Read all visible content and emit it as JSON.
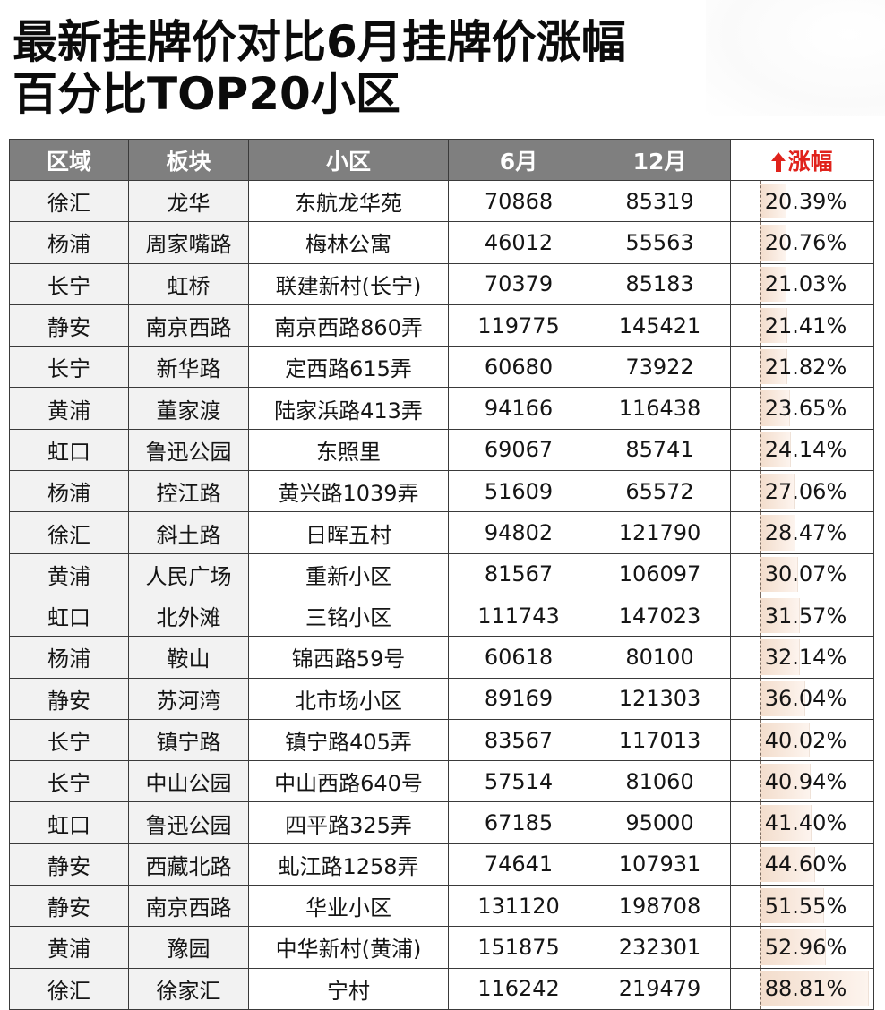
{
  "title": {
    "line1": "最新挂牌价对比6月挂牌价涨幅",
    "line2": "百分比TOP20小区"
  },
  "table": {
    "headers": [
      "区域",
      "板块",
      "小区",
      "6月",
      "12月",
      "涨幅"
    ],
    "rise_icon": "arrow-up-icon",
    "rise_arrow_glyph": "🠉",
    "rise_color": "#e0221b",
    "header_bg": "#7f7f7f",
    "rows": [
      [
        "徐汇",
        "龙华",
        "东航龙华苑",
        "70868",
        "85319",
        "20.39%"
      ],
      [
        "杨浦",
        "周家嘴路",
        "梅林公寓",
        "46012",
        "55563",
        "20.76%"
      ],
      [
        "长宁",
        "虹桥",
        "联建新村(长宁)",
        "70379",
        "85183",
        "21.03%"
      ],
      [
        "静安",
        "南京西路",
        "南京西路860弄",
        "119775",
        "145421",
        "21.41%"
      ],
      [
        "长宁",
        "新华路",
        "定西路615弄",
        "60680",
        "73922",
        "21.82%"
      ],
      [
        "黄浦",
        "董家渡",
        "陆家浜路413弄",
        "94166",
        "116438",
        "23.65%"
      ],
      [
        "虹口",
        "鲁迅公园",
        "东照里",
        "69067",
        "85741",
        "24.14%"
      ],
      [
        "杨浦",
        "控江路",
        "黄兴路1039弄",
        "51609",
        "65572",
        "27.06%"
      ],
      [
        "徐汇",
        "斜土路",
        "日晖五村",
        "94802",
        "121790",
        "28.47%"
      ],
      [
        "黄浦",
        "人民广场",
        "重新小区",
        "81567",
        "106097",
        "30.07%"
      ],
      [
        "虹口",
        "北外滩",
        "三铭小区",
        "111743",
        "147023",
        "31.57%"
      ],
      [
        "杨浦",
        "鞍山",
        "锦西路59号",
        "60618",
        "80100",
        "32.14%"
      ],
      [
        "静安",
        "苏河湾",
        "北市场小区",
        "89169",
        "121303",
        "36.04%"
      ],
      [
        "长宁",
        "镇宁路",
        "镇宁路405弄",
        "83567",
        "117013",
        "40.02%"
      ],
      [
        "长宁",
        "中山公园",
        "中山西路640号",
        "57514",
        "81060",
        "40.94%"
      ],
      [
        "虹口",
        "鲁迅公园",
        "四平路325弄",
        "67185",
        "95000",
        "41.40%"
      ],
      [
        "静安",
        "西藏北路",
        "虬江路1258弄",
        "74641",
        "107931",
        "44.60%"
      ],
      [
        "静安",
        "南京西路",
        "华业小区",
        "131120",
        "198708",
        "51.55%"
      ],
      [
        "黄浦",
        "豫园",
        "中华新村(黄浦)",
        "151875",
        "232301",
        "52.96%"
      ],
      [
        "徐汇",
        "徐家汇",
        "宁村",
        "116242",
        "219479",
        "88.81%"
      ]
    ]
  },
  "chart_data": {
    "type": "table",
    "title": "最新挂牌价对比6月挂牌价涨幅百分比TOP20小区",
    "columns": [
      "区域",
      "板块",
      "小区",
      "6月",
      "12月",
      "涨幅"
    ],
    "rows": [
      {
        "区域": "徐汇",
        "板块": "龙华",
        "小区": "东航龙华苑",
        "6月": 70868,
        "12月": 85319,
        "涨幅": 20.39
      },
      {
        "区域": "杨浦",
        "板块": "周家嘴路",
        "小区": "梅林公寓",
        "6月": 46012,
        "12月": 55563,
        "涨幅": 20.76
      },
      {
        "区域": "长宁",
        "板块": "虹桥",
        "小区": "联建新村(长宁)",
        "6月": 70379,
        "12月": 85183,
        "涨幅": 21.03
      },
      {
        "区域": "静安",
        "板块": "南京西路",
        "小区": "南京西路860弄",
        "6月": 119775,
        "12月": 145421,
        "涨幅": 21.41
      },
      {
        "区域": "长宁",
        "板块": "新华路",
        "小区": "定西路615弄",
        "6月": 60680,
        "12月": 73922,
        "涨幅": 21.82
      },
      {
        "区域": "黄浦",
        "板块": "董家渡",
        "小区": "陆家浜路413弄",
        "6月": 94166,
        "12月": 116438,
        "涨幅": 23.65
      },
      {
        "区域": "虹口",
        "板块": "鲁迅公园",
        "小区": "东照里",
        "6月": 69067,
        "12月": 85741,
        "涨幅": 24.14
      },
      {
        "区域": "杨浦",
        "板块": "控江路",
        "小区": "黄兴路1039弄",
        "6月": 51609,
        "12月": 65572,
        "涨幅": 27.06
      },
      {
        "区域": "徐汇",
        "板块": "斜土路",
        "小区": "日晖五村",
        "6月": 94802,
        "12月": 121790,
        "涨幅": 28.47
      },
      {
        "区域": "黄浦",
        "板块": "人民广场",
        "小区": "重新小区",
        "6月": 81567,
        "12月": 106097,
        "涨幅": 30.07
      },
      {
        "区域": "虹口",
        "板块": "北外滩",
        "小区": "三铭小区",
        "6月": 111743,
        "12月": 147023,
        "涨幅": 31.57
      },
      {
        "区域": "杨浦",
        "板块": "鞍山",
        "小区": "锦西路59号",
        "6月": 60618,
        "12月": 80100,
        "涨幅": 32.14
      },
      {
        "区域": "静安",
        "板块": "苏河湾",
        "小区": "北市场小区",
        "6月": 89169,
        "12月": 121303,
        "涨幅": 36.04
      },
      {
        "区域": "长宁",
        "板块": "镇宁路",
        "小区": "镇宁路405弄",
        "6月": 83567,
        "12月": 117013,
        "涨幅": 40.02
      },
      {
        "区域": "长宁",
        "板块": "中山公园",
        "小区": "中山西路640号",
        "6月": 57514,
        "12月": 81060,
        "涨幅": 40.94
      },
      {
        "区域": "虹口",
        "板块": "鲁迅公园",
        "小区": "四平路325弄",
        "6月": 67185,
        "12月": 95000,
        "涨幅": 41.4
      },
      {
        "区域": "静安",
        "板块": "西藏北路",
        "小区": "虬江路1258弄",
        "6月": 74641,
        "12月": 107931,
        "涨幅": 44.6
      },
      {
        "区域": "静安",
        "板块": "南京西路",
        "小区": "华业小区",
        "6月": 131120,
        "12月": 198708,
        "涨幅": 51.55
      },
      {
        "区域": "黄浦",
        "板块": "豫园",
        "小区": "中华新村(黄浦)",
        "6月": 151875,
        "12月": 232301,
        "涨幅": 52.96
      },
      {
        "区域": "徐汇",
        "板块": "徐家汇",
        "小区": "宁村",
        "6月": 116242,
        "12月": 219479,
        "涨幅": 88.81
      }
    ],
    "databar_column": "涨幅",
    "databar_max": 88.81,
    "unit_pct": "%"
  }
}
